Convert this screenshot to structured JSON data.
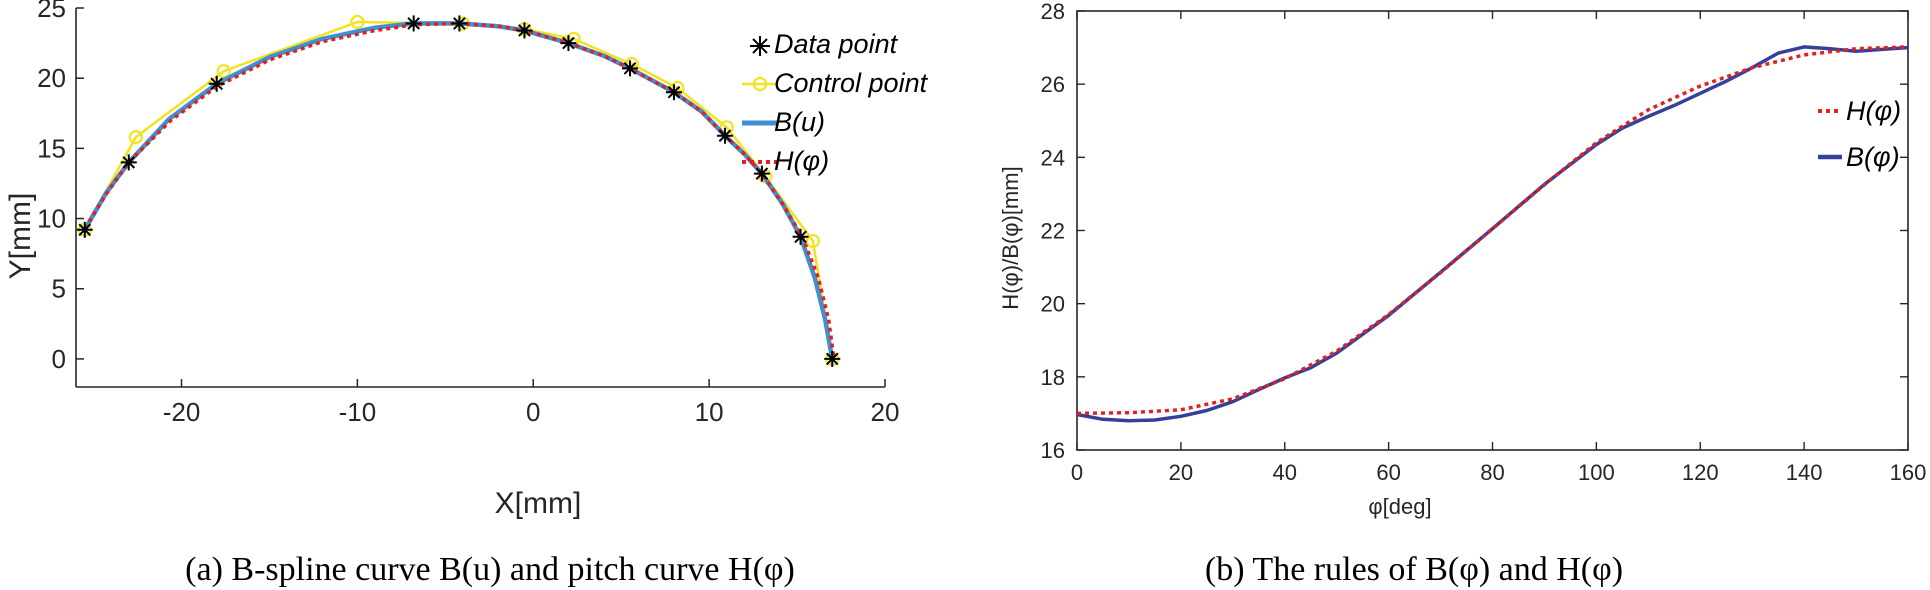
{
  "colors": {
    "data_point": "#000000",
    "control_point": "#f0e41e",
    "b_curve_a": "#3f8fd2",
    "h_curve": "#e0221e",
    "b_curve_b": "#34409a",
    "axis": "#262626"
  },
  "chart_data": [
    {
      "type": "line",
      "caption": "(a) B-spline curve B(u) and pitch curve H(φ)",
      "xlabel": "X[mm]",
      "ylabel": "Y[mm]",
      "xlim": [
        -26,
        20
      ],
      "ylim": [
        -2,
        25
      ],
      "xticks": [
        -20,
        -10,
        0,
        10,
        20
      ],
      "yticks": [
        0,
        5,
        10,
        15,
        20,
        25
      ],
      "xtick_labels": [
        "-20",
        "-10",
        "0",
        "10",
        "20"
      ],
      "ytick_labels": [
        "0",
        "5",
        "10",
        "15",
        "20",
        "25"
      ],
      "legend_position": "top-right",
      "legend": [
        "Data point",
        "Control point",
        "B(u)",
        "H(φ)"
      ],
      "series": [
        {
          "name": "Data point",
          "style": "marker",
          "points": [
            [
              -25.5,
              9.2
            ],
            [
              -23.0,
              14.0
            ],
            [
              -18.0,
              19.6
            ],
            [
              -6.8,
              23.9
            ],
            [
              -4.2,
              23.9
            ],
            [
              -0.5,
              23.4
            ],
            [
              2.0,
              22.5
            ],
            [
              5.5,
              20.7
            ],
            [
              8.0,
              19.0
            ],
            [
              10.9,
              15.9
            ],
            [
              13.0,
              13.2
            ],
            [
              15.2,
              8.7
            ],
            [
              17.0,
              0.0
            ]
          ]
        },
        {
          "name": "Control point",
          "style": "line-circle",
          "points": [
            [
              -25.5,
              9.2
            ],
            [
              -22.6,
              15.8
            ],
            [
              -17.6,
              20.5
            ],
            [
              -10.0,
              24.0
            ],
            [
              -4.0,
              23.9
            ],
            [
              -0.5,
              23.5
            ],
            [
              2.3,
              22.8
            ],
            [
              5.6,
              21.0
            ],
            [
              8.2,
              19.3
            ],
            [
              11.0,
              16.5
            ],
            [
              13.2,
              13.0
            ],
            [
              15.9,
              8.4
            ],
            [
              17.0,
              0.0
            ]
          ]
        },
        {
          "name": "B(u)",
          "style": "solid",
          "points": [
            [
              -25.5,
              9.2
            ],
            [
              -24.3,
              11.8
            ],
            [
              -23.0,
              14.0
            ],
            [
              -20.7,
              17.1
            ],
            [
              -18.0,
              19.6
            ],
            [
              -15.0,
              21.5
            ],
            [
              -12.0,
              22.8
            ],
            [
              -9.0,
              23.6
            ],
            [
              -6.8,
              23.9
            ],
            [
              -4.2,
              23.9
            ],
            [
              -2.0,
              23.7
            ],
            [
              -0.5,
              23.4
            ],
            [
              2.0,
              22.5
            ],
            [
              4.0,
              21.6
            ],
            [
              5.5,
              20.7
            ],
            [
              8.0,
              19.0
            ],
            [
              9.6,
              17.6
            ],
            [
              10.9,
              15.9
            ],
            [
              12.0,
              14.6
            ],
            [
              13.0,
              13.2
            ],
            [
              14.2,
              11.0
            ],
            [
              15.2,
              8.7
            ],
            [
              16.0,
              5.8
            ],
            [
              16.6,
              2.8
            ],
            [
              17.0,
              0.0
            ]
          ]
        },
        {
          "name": "H(φ)",
          "style": "dotted",
          "points": [
            [
              -25.5,
              9.3
            ],
            [
              -24.2,
              11.9
            ],
            [
              -23.0,
              14.0
            ],
            [
              -20.6,
              17.0
            ],
            [
              -18.0,
              19.4
            ],
            [
              -15.0,
              21.3
            ],
            [
              -12.0,
              22.6
            ],
            [
              -9.0,
              23.4
            ],
            [
              -6.8,
              23.8
            ],
            [
              -4.2,
              23.9
            ],
            [
              -2.0,
              23.7
            ],
            [
              -0.5,
              23.4
            ],
            [
              2.0,
              22.5
            ],
            [
              4.0,
              21.6
            ],
            [
              5.5,
              20.7
            ],
            [
              8.0,
              19.0
            ],
            [
              9.6,
              17.6
            ],
            [
              10.9,
              15.9
            ],
            [
              12.0,
              14.6
            ],
            [
              13.0,
              13.2
            ],
            [
              14.2,
              11.0
            ],
            [
              15.3,
              8.7
            ],
            [
              16.2,
              5.8
            ],
            [
              16.8,
              2.8
            ],
            [
              17.1,
              0.0
            ]
          ]
        }
      ]
    },
    {
      "type": "line",
      "caption": "(b) The rules of B(φ) and H(φ)",
      "xlabel": "φ[deg]",
      "ylabel": "H(φ)/B(φ)[mm]",
      "xlim": [
        0,
        160
      ],
      "ylim": [
        16,
        28
      ],
      "xticks": [
        0,
        20,
        40,
        60,
        80,
        100,
        120,
        140,
        160
      ],
      "yticks": [
        16,
        18,
        20,
        22,
        24,
        26,
        28
      ],
      "xtick_labels": [
        "0",
        "20",
        "40",
        "60",
        "80",
        "100",
        "120",
        "140",
        "160"
      ],
      "ytick_labels": [
        "16",
        "18",
        "20",
        "22",
        "24",
        "26",
        "28"
      ],
      "legend_position": "top-right",
      "legend": [
        "H(φ)",
        "B(φ)"
      ],
      "series": [
        {
          "name": "H(φ)",
          "style": "dotted",
          "points": [
            [
              0,
              17.0
            ],
            [
              10,
              17.02
            ],
            [
              20,
              17.1
            ],
            [
              30,
              17.4
            ],
            [
              40,
              17.95
            ],
            [
              50,
              18.7
            ],
            [
              60,
              19.7
            ],
            [
              70,
              20.85
            ],
            [
              80,
              22.05
            ],
            [
              90,
              23.25
            ],
            [
              100,
              24.4
            ],
            [
              110,
              25.3
            ],
            [
              120,
              25.95
            ],
            [
              130,
              26.45
            ],
            [
              140,
              26.8
            ],
            [
              150,
              26.97
            ],
            [
              160,
              27.02
            ]
          ]
        },
        {
          "name": "B(φ)",
          "style": "solid",
          "points": [
            [
              0,
              16.97
            ],
            [
              5,
              16.84
            ],
            [
              10,
              16.8
            ],
            [
              15,
              16.82
            ],
            [
              20,
              16.92
            ],
            [
              25,
              17.08
            ],
            [
              30,
              17.32
            ],
            [
              35,
              17.65
            ],
            [
              40,
              17.97
            ],
            [
              45,
              18.25
            ],
            [
              50,
              18.65
            ],
            [
              60,
              19.68
            ],
            [
              70,
              20.86
            ],
            [
              80,
              22.05
            ],
            [
              90,
              23.26
            ],
            [
              100,
              24.35
            ],
            [
              105,
              24.8
            ],
            [
              110,
              25.12
            ],
            [
              115,
              25.42
            ],
            [
              120,
              25.75
            ],
            [
              125,
              26.08
            ],
            [
              130,
              26.45
            ],
            [
              135,
              26.85
            ],
            [
              140,
              27.02
            ],
            [
              145,
              26.97
            ],
            [
              150,
              26.9
            ],
            [
              155,
              26.95
            ],
            [
              160,
              27.0
            ]
          ]
        }
      ]
    }
  ]
}
